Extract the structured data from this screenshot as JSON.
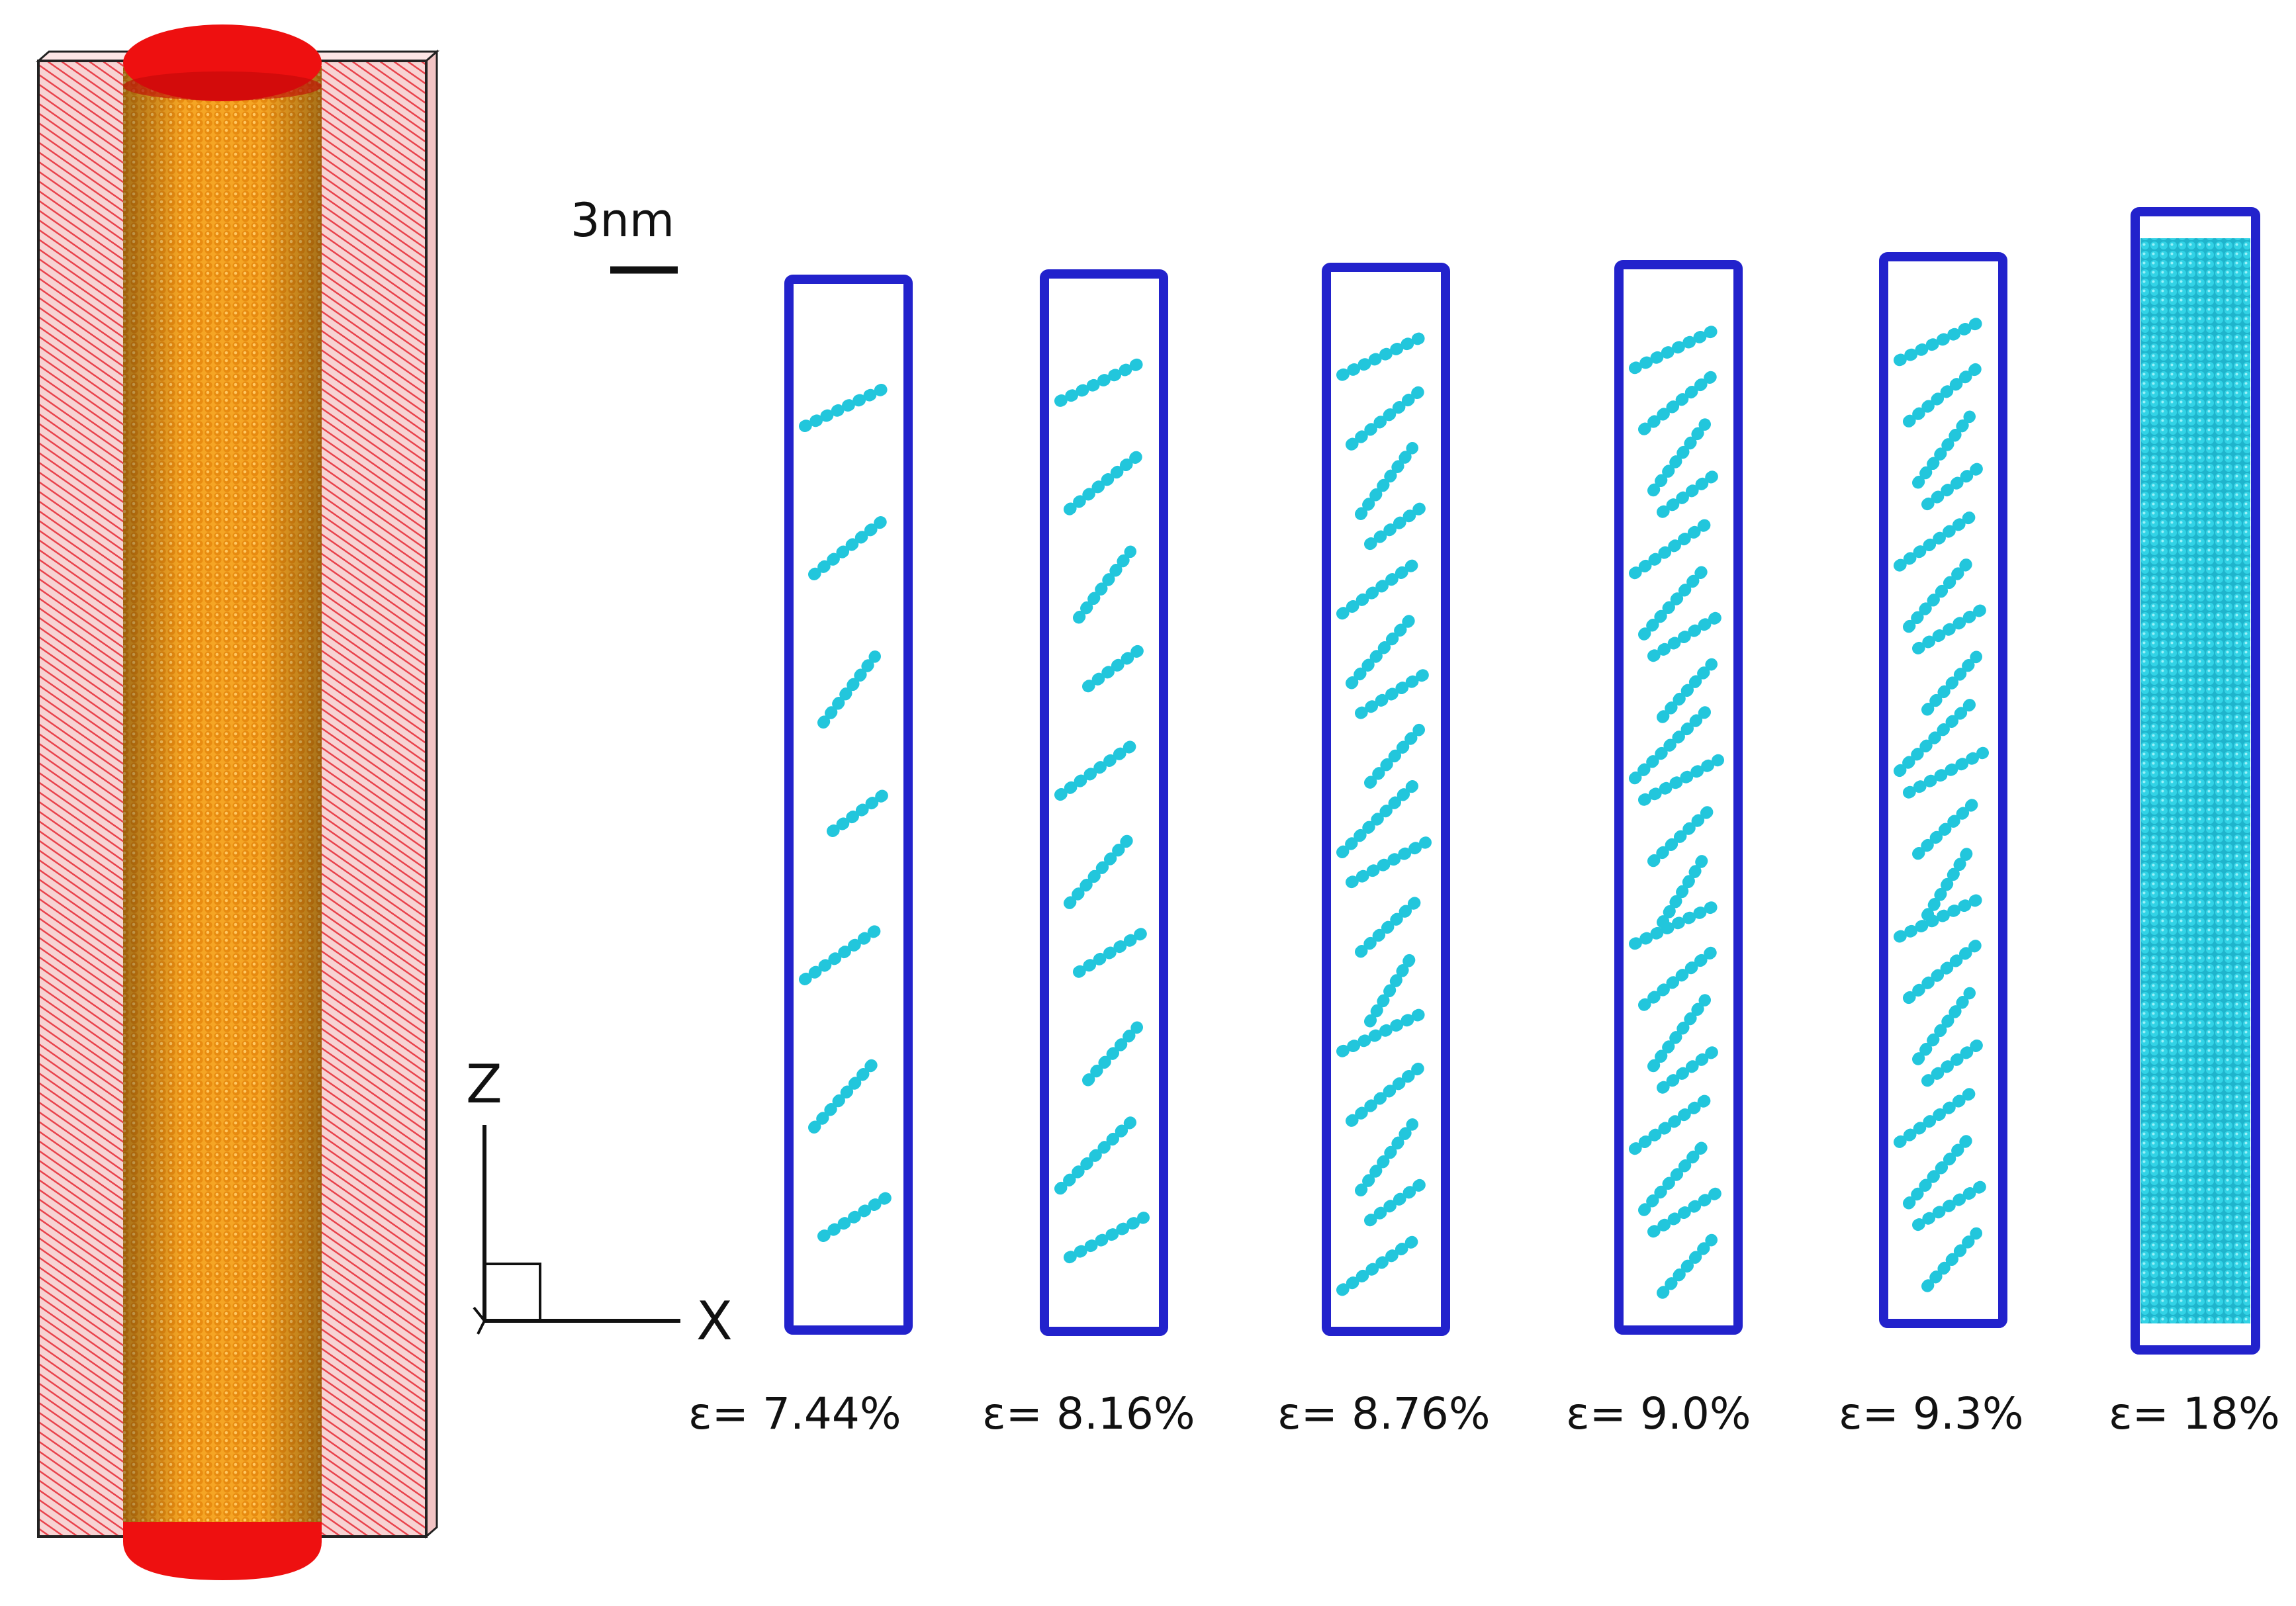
{
  "scale_bar": {
    "label": "3nm"
  },
  "axes": {
    "vertical_label": "Z",
    "horizontal_label": "X"
  },
  "colors": {
    "nanowire_body": "#f39a1c",
    "nanowire_caps": "#ee1010",
    "slab_hatch": "#e8434c",
    "frame_atoms": "#2222cc",
    "interior_atoms": "#22c6dc"
  },
  "snapshots": [
    {
      "label": "ε= 7.44%",
      "fill": 0.1
    },
    {
      "label": "ε= 8.16%",
      "fill": 0.22
    },
    {
      "label": "ε= 8.76%",
      "fill": 0.5
    },
    {
      "label": "ε= 9.0%",
      "fill": 0.62
    },
    {
      "label": "ε= 9.3%",
      "fill": 0.62
    },
    {
      "label": "ε= 18%",
      "fill": 1.0
    }
  ]
}
